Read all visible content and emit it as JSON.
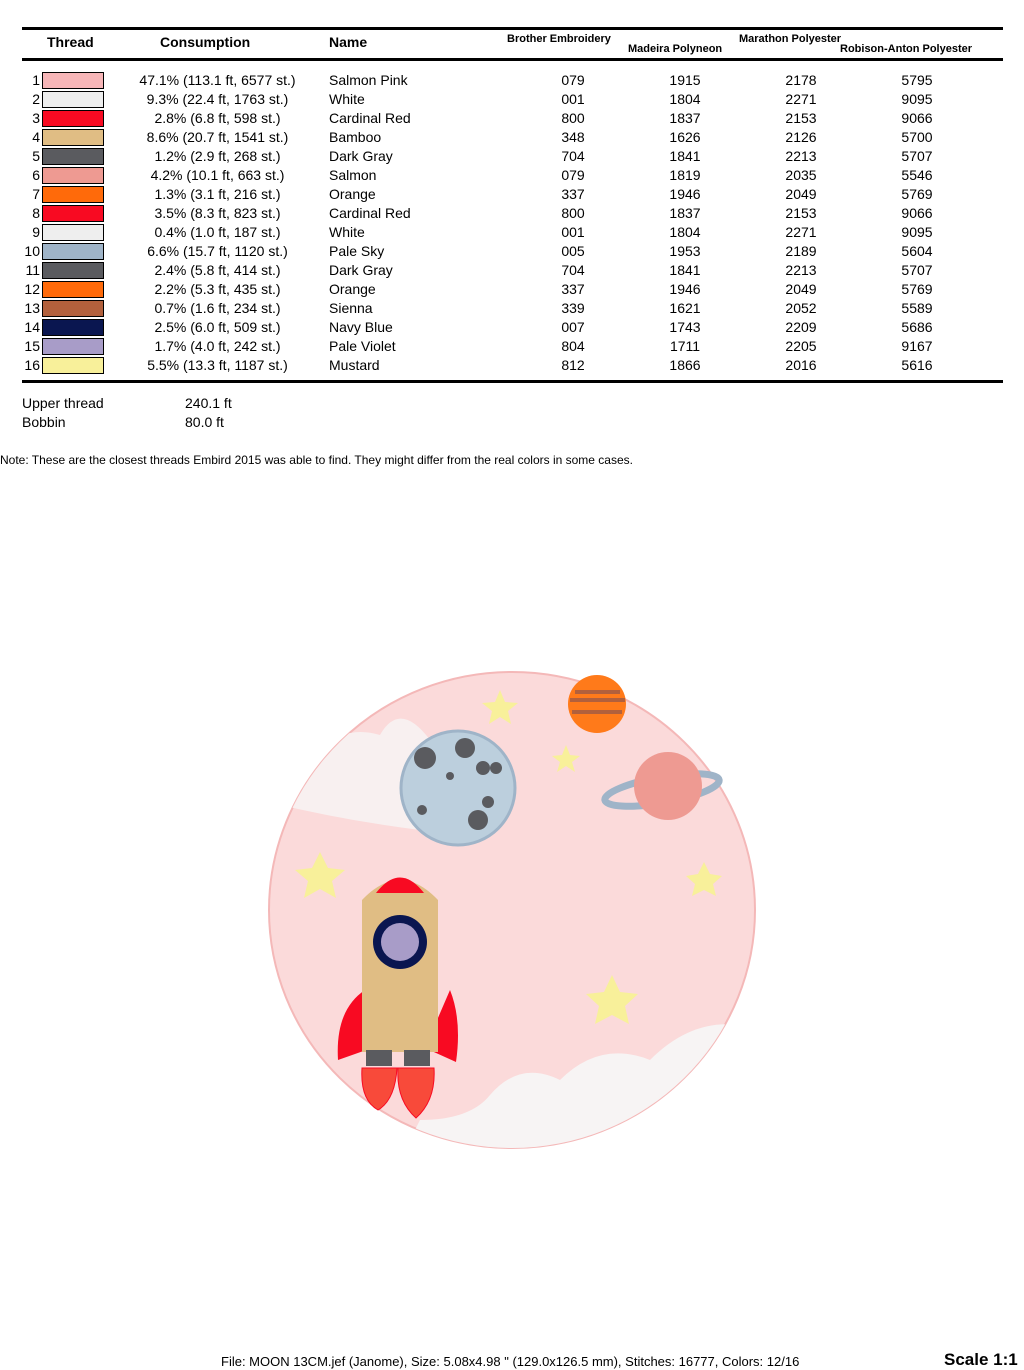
{
  "headers": {
    "thread": "Thread",
    "consumption": "Consumption",
    "name": "Name",
    "brother": "Brother Embroidery",
    "madeira": "Madeira Polyneon",
    "marathon": "Marathon Polyester",
    "robison": "Robison-Anton Polyester"
  },
  "rows": [
    {
      "n": "1",
      "color": "#f7b6b8",
      "cons": "47.1% (113.1 ft, 6577 st.)",
      "name": "Salmon Pink",
      "brother": "079",
      "madeira": "1915",
      "marathon": "2178",
      "robison": "5795"
    },
    {
      "n": "2",
      "color": "#eeeeee",
      "cons": "9.3% (22.4 ft, 1763 st.)",
      "name": "White",
      "brother": "001",
      "madeira": "1804",
      "marathon": "2271",
      "robison": "9095"
    },
    {
      "n": "3",
      "color": "#f80a22",
      "cons": "2.8% (6.8 ft, 598 st.)",
      "name": "Cardinal Red",
      "brother": "800",
      "madeira": "1837",
      "marathon": "2153",
      "robison": "9066"
    },
    {
      "n": "4",
      "color": "#e0bd84",
      "cons": "8.6% (20.7 ft, 1541 st.)",
      "name": "Bamboo",
      "brother": "348",
      "madeira": "1626",
      "marathon": "2126",
      "robison": "5700"
    },
    {
      "n": "5",
      "color": "#5a5b5f",
      "cons": "1.2% (2.9 ft, 268 st.)",
      "name": "Dark Gray",
      "brother": "704",
      "madeira": "1841",
      "marathon": "2213",
      "robison": "5707"
    },
    {
      "n": "6",
      "color": "#ee9a92",
      "cons": "4.2% (10.1 ft, 663 st.)",
      "name": "Salmon",
      "brother": "079",
      "madeira": "1819",
      "marathon": "2035",
      "robison": "5546"
    },
    {
      "n": "7",
      "color": "#ff6a0a",
      "cons": "1.3% (3.1 ft, 216 st.)",
      "name": "Orange",
      "brother": "337",
      "madeira": "1946",
      "marathon": "2049",
      "robison": "5769"
    },
    {
      "n": "8",
      "color": "#f80a22",
      "cons": "3.5% (8.3 ft, 823 st.)",
      "name": "Cardinal Red",
      "brother": "800",
      "madeira": "1837",
      "marathon": "2153",
      "robison": "9066"
    },
    {
      "n": "9",
      "color": "#eeeeee",
      "cons": "0.4% (1.0 ft, 187 st.)",
      "name": "White",
      "brother": "001",
      "madeira": "1804",
      "marathon": "2271",
      "robison": "9095"
    },
    {
      "n": "10",
      "color": "#9fb4c8",
      "cons": "6.6% (15.7 ft, 1120 st.)",
      "name": "Pale Sky",
      "brother": "005",
      "madeira": "1953",
      "marathon": "2189",
      "robison": "5604"
    },
    {
      "n": "11",
      "color": "#5a5b5f",
      "cons": "2.4% (5.8 ft, 414 st.)",
      "name": "Dark Gray",
      "brother": "704",
      "madeira": "1841",
      "marathon": "2213",
      "robison": "5707"
    },
    {
      "n": "12",
      "color": "#ff6a0a",
      "cons": "2.2% (5.3 ft, 435 st.)",
      "name": "Orange",
      "brother": "337",
      "madeira": "1946",
      "marathon": "2049",
      "robison": "5769"
    },
    {
      "n": "13",
      "color": "#b2603c",
      "cons": "0.7% (1.6 ft, 234 st.)",
      "name": "Sienna",
      "brother": "339",
      "madeira": "1621",
      "marathon": "2052",
      "robison": "5589"
    },
    {
      "n": "14",
      "color": "#0a1650",
      "cons": "2.5% (6.0 ft, 509 st.)",
      "name": "Navy Blue",
      "brother": "007",
      "madeira": "1743",
      "marathon": "2209",
      "robison": "5686"
    },
    {
      "n": "15",
      "color": "#a89cc8",
      "cons": "1.7% (4.0 ft, 242 st.)",
      "name": "Pale Violet",
      "brother": "804",
      "madeira": "1711",
      "marathon": "2205",
      "robison": "9167"
    },
    {
      "n": "16",
      "color": "#f8f09a",
      "cons": "5.5% (13.3 ft, 1187 st.)",
      "name": "Mustard",
      "brother": "812",
      "madeira": "1866",
      "marathon": "2016",
      "robison": "5616"
    }
  ],
  "totals": {
    "upper_label": "Upper thread",
    "upper_value": "240.1 ft",
    "bobbin_label": "Bobbin",
    "bobbin_value": "80.0 ft"
  },
  "note": "Note: These are the closest threads Embird 2015 was able to find. They might differ from the real colors in some cases.",
  "footer": {
    "file_info": "File: MOON 13CM.jef (Janome), Size: 5.08x4.98 \" (129.0x126.5 mm), Stitches: 16777, Colors: 12/16",
    "scale": "Scale 1:1"
  }
}
